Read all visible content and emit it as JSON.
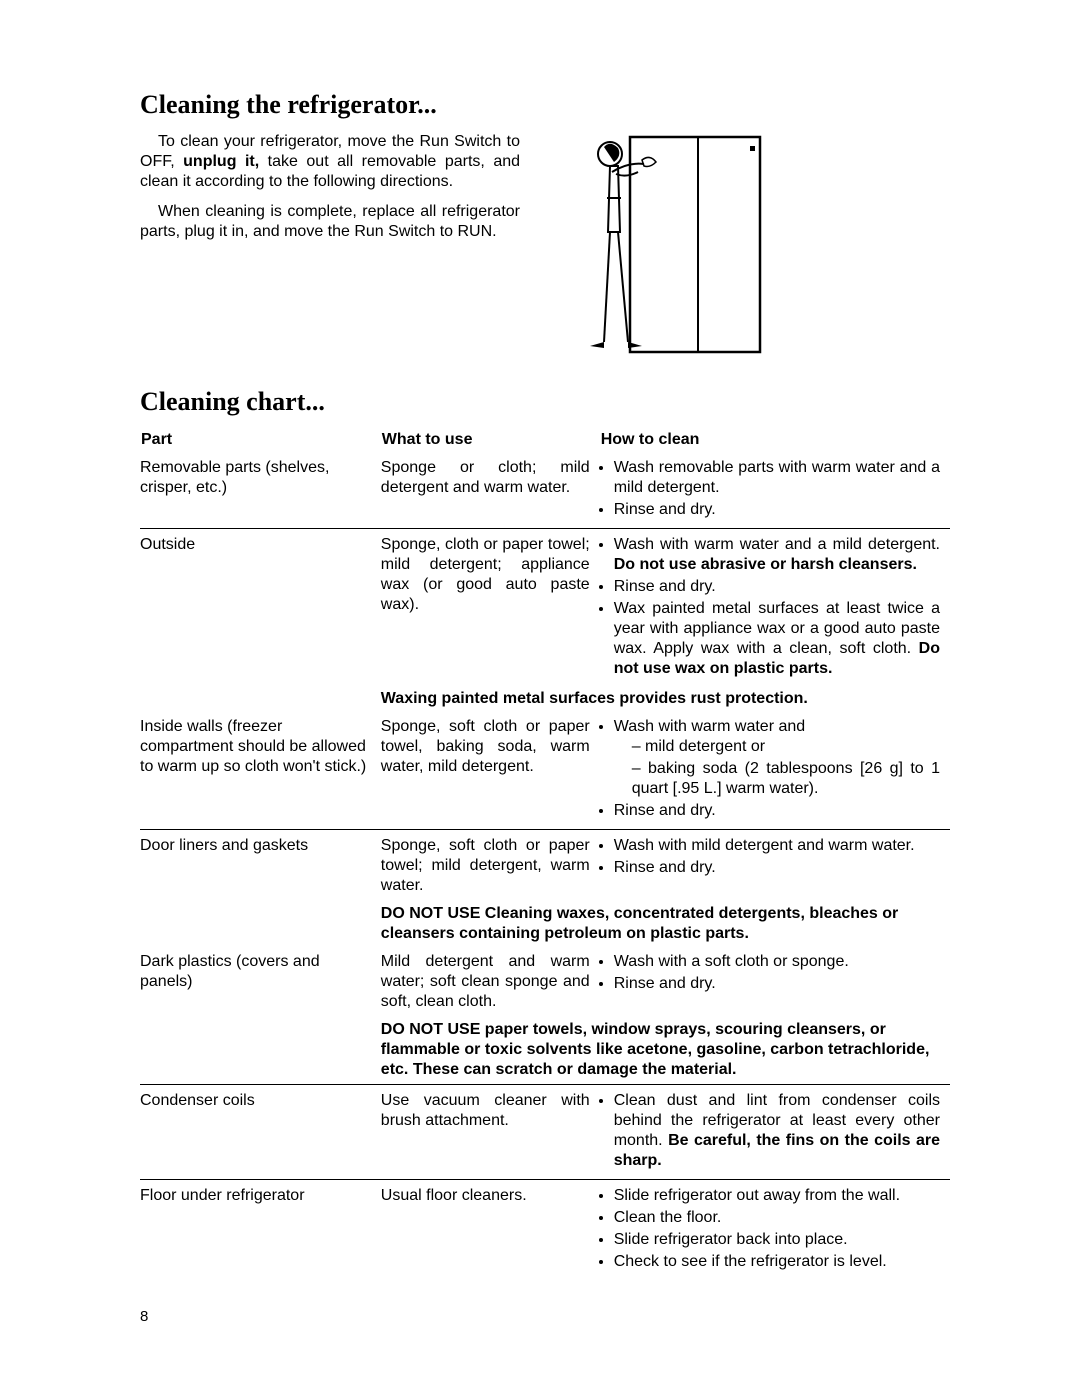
{
  "page_number": 8,
  "section1_title": "Cleaning the refrigerator...",
  "intro_para1_html": "To clean your refrigerator, move the Run Switch to OFF, <b>unplug it,</b> take out all removable parts, and clean it according to the following directions.",
  "intro_para2_html": "When cleaning is complete, replace all refrigerator parts, plug it in, and move the Run Switch to RUN.",
  "section2_title": "Cleaning chart...",
  "chart_headers": [
    "Part",
    "What to use",
    "How to clean"
  ],
  "rows": [
    {
      "part": "Removable parts (shelves, crisper, etc.)",
      "use": "Sponge or cloth; mild detergent and warm water.",
      "how_html": "<ul><li>Wash removable parts with warm water and a mild detergent.</li><li>Rinse and dry.</li></ul>"
    },
    {
      "divider": true,
      "part": "Outside",
      "use": "Sponge, cloth or paper towel; mild detergent; appliance wax (or good auto paste wax).",
      "how_html": "<ul><li>Wash with warm water and a mild detergent. <b>Do not use abrasive or harsh cleansers.</b></li><li>Rinse and dry.</li><li>Wax painted metal surfaces at least twice a year with appliance wax or a good auto paste wax. Apply wax with a clean, soft cloth. <b>Do not use wax on plastic parts.</b></li></ul>"
    },
    {
      "note": true,
      "note_html": "Waxing painted metal surfaces provides rust protection."
    },
    {
      "part": "Inside walls (freezer compartment should be allowed to warm up so cloth won't stick.)",
      "use": "Sponge, soft cloth or paper towel, baking soda, warm water, mild detergent.",
      "how_html": "<ul><li>Wash with warm water and<ul><li>mild detergent or</li><li>baking soda (2 tablespoons [26 g] to 1 quart [.95 L.] warm water).</li></ul></li><li>Rinse and dry.</li></ul>"
    },
    {
      "divider": true,
      "part": "Door liners and gaskets",
      "use": "Sponge, soft cloth or paper towel; mild detergent, warm water.",
      "how_html": "<ul><li>Wash with mild detergent and warm water.</li><li>Rinse and dry.</li></ul>"
    },
    {
      "note": true,
      "note_html": "DO NOT USE Cleaning waxes, concentrated detergents, bleaches or cleansers containing petroleum on plastic parts."
    },
    {
      "part": "Dark plastics (covers and panels)",
      "use": "Mild detergent and warm water; soft clean sponge and soft, clean cloth.",
      "how_html": "<ul><li>Wash with a soft cloth or sponge.</li><li>Rinse and dry.</li></ul>"
    },
    {
      "note": true,
      "note_html": "DO NOT USE paper towels, window sprays, scouring cleansers, or flammable or toxic solvents like acetone, gasoline, carbon tetrachloride, etc. These can scratch or damage the material."
    },
    {
      "divider": true,
      "part": "Condenser coils",
      "use": "Use vacuum cleaner with brush attachment.",
      "how_html": "<ul><li>Clean dust and lint from condenser coils behind the refrigerator at least every other month. <b>Be careful, the fins on the coils are sharp.</b></li></ul>"
    },
    {
      "divider": true,
      "part": "Floor under refrigerator",
      "use": "Usual floor cleaners.",
      "how_html": "<ul><li>Slide refrigerator out away from the wall.</li><li>Clean the floor.</li><li>Slide refrigerator back into place.</li><li>Check to see if the refrigerator is level.</li></ul>"
    }
  ]
}
